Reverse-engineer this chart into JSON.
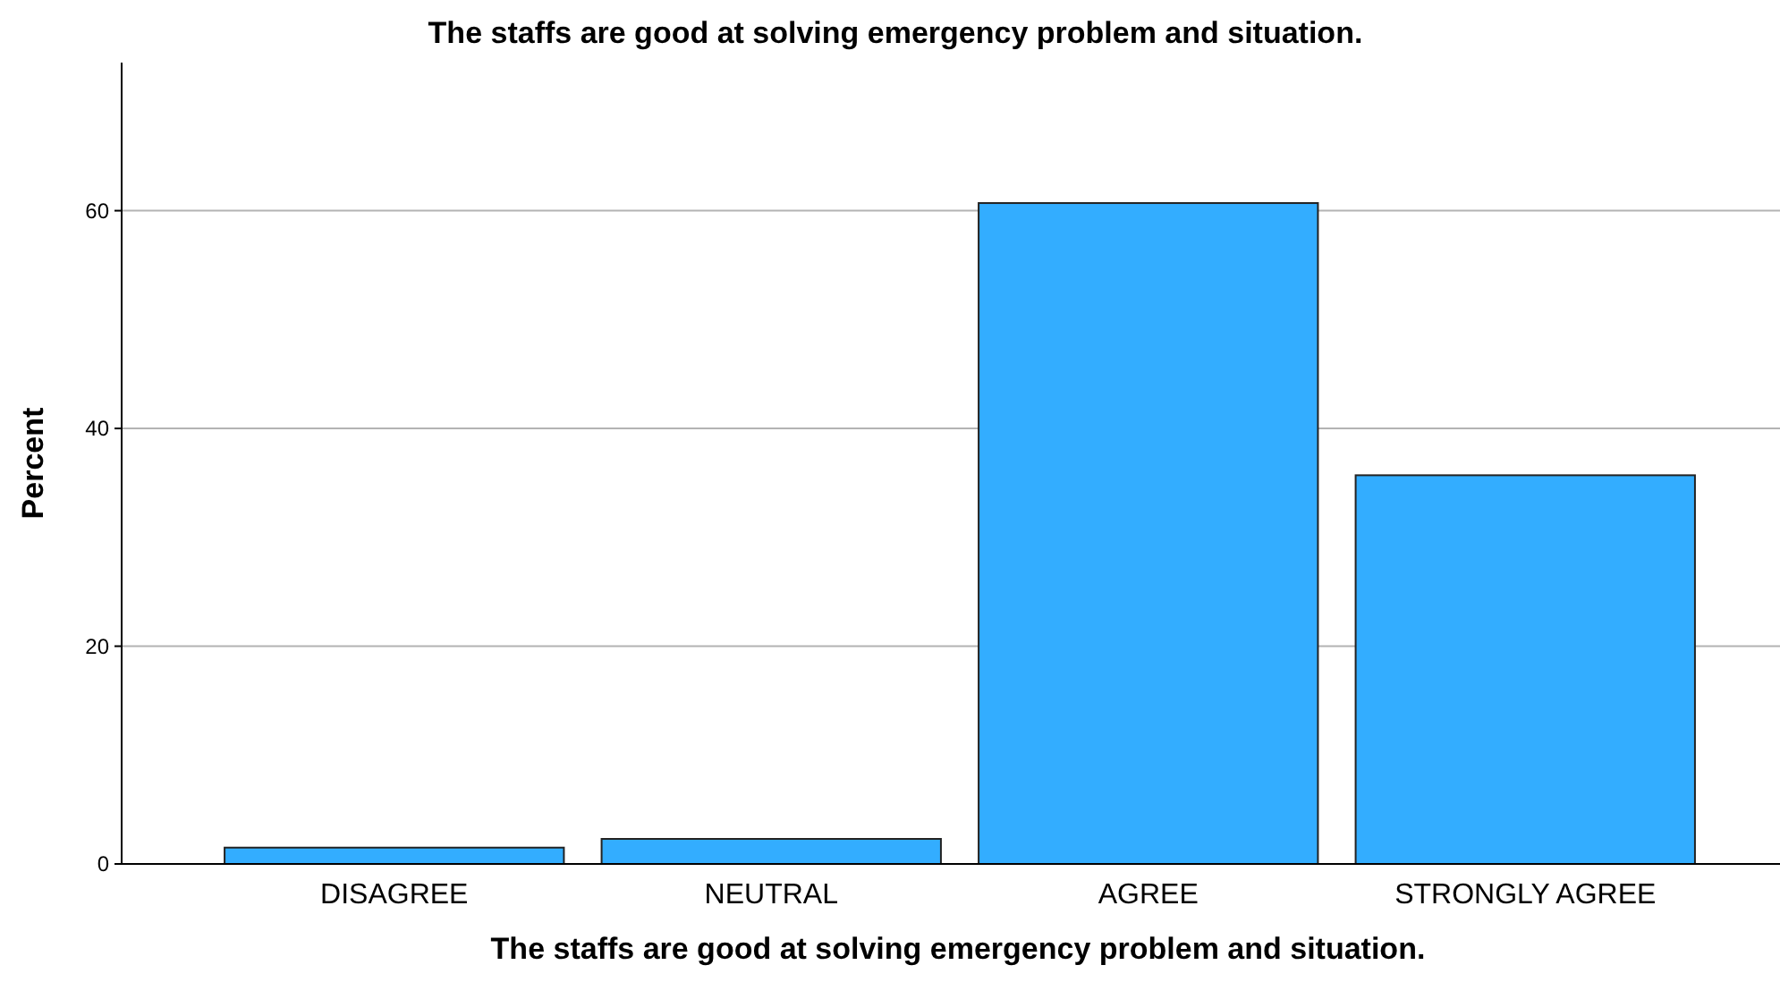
{
  "chart_data": {
    "type": "bar",
    "title": "The staffs are good at solving emergency problem and situation.",
    "xlabel": "The staffs are good at solving emergency problem and situation.",
    "ylabel": "Percent",
    "categories": [
      "DISAGREE",
      "NEUTRAL",
      "AGREE",
      "STRONGLY AGREE"
    ],
    "values": [
      1.5,
      2.3,
      60.7,
      35.7
    ],
    "color": "#33adff",
    "ylim": [
      0,
      73.6
    ],
    "yticks": [
      0,
      20,
      40,
      60
    ],
    "grid": "y"
  }
}
